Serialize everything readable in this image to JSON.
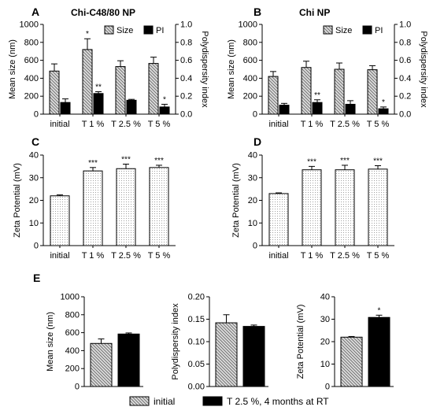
{
  "chart_data": [
    {
      "panel": "A",
      "type": "bar",
      "title": "Chi-C48/80 NP",
      "categories": [
        "initial",
        "T 1 %",
        "T 2.5 %",
        "T 5 %"
      ],
      "ylabel": "Mean size (nm)",
      "ylim": [
        0,
        1000
      ],
      "yticks": [
        0,
        200,
        400,
        600,
        800,
        1000
      ],
      "y2label": "Polydispersity index",
      "y2lim": [
        0,
        1.0
      ],
      "y2ticks": [
        "0.0",
        "0.2",
        "0.4",
        "0.6",
        "0.8",
        "1.0"
      ],
      "legend": {
        "position": "top-right",
        "entries": [
          "Size",
          "PI"
        ]
      },
      "series": [
        {
          "name": "Size",
          "axis": "left",
          "pattern": "hatch",
          "values": [
            480,
            720,
            530,
            565
          ],
          "errors": [
            80,
            120,
            65,
            70
          ],
          "sig": [
            "",
            "*",
            "",
            ""
          ]
        },
        {
          "name": "PI",
          "axis": "right",
          "pattern": "solid",
          "values": [
            0.13,
            0.23,
            0.155,
            0.08
          ],
          "errors": [
            0.04,
            0.02,
            0.01,
            0.03
          ],
          "sig": [
            "",
            "**",
            "",
            "*"
          ]
        }
      ]
    },
    {
      "panel": "B",
      "type": "bar",
      "title": "Chi NP",
      "categories": [
        "initial",
        "T 1 %",
        "T 2.5 %",
        "T 5 %"
      ],
      "ylabel": "Mean size (nm)",
      "ylim": [
        0,
        1000
      ],
      "yticks": [
        0,
        200,
        400,
        600,
        800,
        1000
      ],
      "y2label": "Polydispersity index",
      "y2lim": [
        0,
        1.0
      ],
      "y2ticks": [
        "0.0",
        "0.2",
        "0.4",
        "0.6",
        "0.8",
        "1.0"
      ],
      "legend": {
        "position": "top-right",
        "entries": [
          "Size",
          "PI"
        ]
      },
      "series": [
        {
          "name": "Size",
          "axis": "left",
          "pattern": "hatch",
          "values": [
            420,
            520,
            500,
            495
          ],
          "errors": [
            55,
            70,
            70,
            45
          ],
          "sig": [
            "",
            "",
            "",
            ""
          ]
        },
        {
          "name": "PI",
          "axis": "right",
          "pattern": "solid",
          "values": [
            0.1,
            0.13,
            0.11,
            0.06
          ],
          "errors": [
            0.02,
            0.03,
            0.04,
            0.02
          ],
          "sig": [
            "",
            "**",
            "",
            "*"
          ]
        }
      ]
    },
    {
      "panel": "C",
      "type": "bar",
      "categories": [
        "initial",
        "T 1 %",
        "T 2.5 %",
        "T 5 %"
      ],
      "ylabel": "Zeta Potential (mV)",
      "ylim": [
        0,
        40
      ],
      "yticks": [
        0,
        10,
        20,
        30,
        40
      ],
      "series": [
        {
          "pattern": "dots",
          "values": [
            22,
            33,
            34,
            34.5
          ],
          "errors": [
            0.4,
            1.5,
            2,
            1
          ],
          "sig": [
            "",
            "***",
            "***",
            "***"
          ]
        }
      ]
    },
    {
      "panel": "D",
      "type": "bar",
      "categories": [
        "initial",
        "T 1 %",
        "T 2.5 %",
        "T 5 %"
      ],
      "ylabel": "Zeta Potential (mV)",
      "ylim": [
        0,
        40
      ],
      "yticks": [
        0,
        10,
        20,
        30,
        40
      ],
      "series": [
        {
          "pattern": "dots",
          "values": [
            23,
            33.5,
            33.5,
            33.8
          ],
          "errors": [
            0.3,
            1.5,
            2,
            1.5
          ],
          "sig": [
            "",
            "***",
            "***",
            "***"
          ]
        }
      ]
    },
    {
      "panel": "E",
      "type": "bar",
      "subplots": [
        {
          "ylabel": "Mean size (nm)",
          "ylim": [
            0,
            1000
          ],
          "yticks": [
            "0",
            "200",
            "400",
            "600",
            "800",
            "1000"
          ],
          "values": [
            480,
            585
          ],
          "errors": [
            50,
            12
          ],
          "sig": [
            "",
            ""
          ]
        },
        {
          "ylabel": "Polydispersity index",
          "ylim": [
            0,
            0.2
          ],
          "yticks": [
            "0.00",
            "0.05",
            "0.10",
            "0.15",
            "0.20"
          ],
          "values": [
            0.142,
            0.134
          ],
          "errors": [
            0.018,
            0.003
          ],
          "sig": [
            "",
            ""
          ]
        },
        {
          "ylabel": "Zeta Potential (mV)",
          "ylim": [
            0,
            40
          ],
          "yticks": [
            "0",
            "10",
            "20",
            "30",
            "40"
          ],
          "values": [
            22,
            30.8
          ],
          "errors": [
            0.3,
            1
          ],
          "sig": [
            "",
            "*"
          ]
        }
      ],
      "legend": {
        "position": "bottom",
        "entries": [
          {
            "label": "initial",
            "pattern": "hatch"
          },
          {
            "label": "T 2.5 %, 4 months at RT",
            "pattern": "solid"
          }
        ]
      }
    }
  ]
}
